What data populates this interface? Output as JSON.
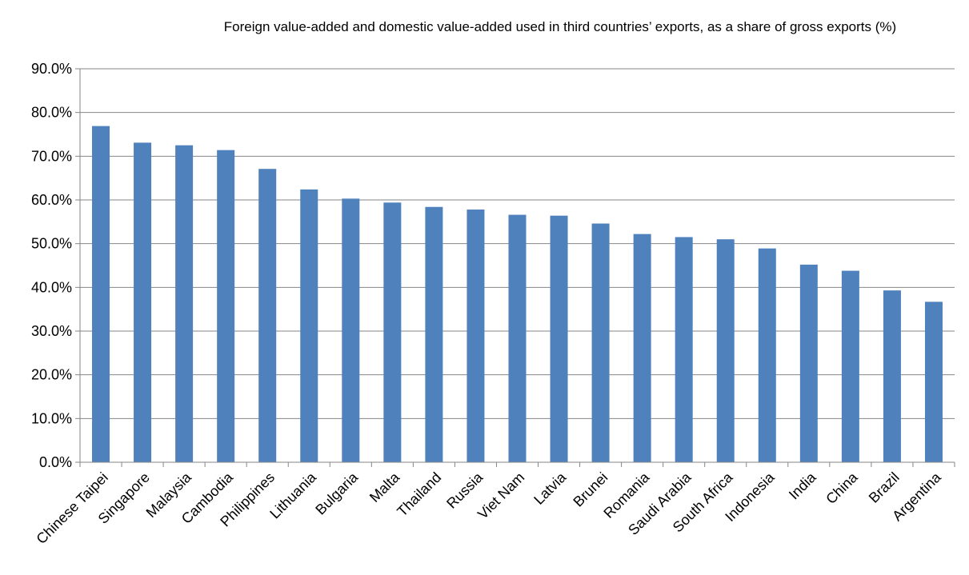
{
  "chart_data": {
    "type": "bar",
    "title": "Foreign value-added and domestic value-added used in third countries’ exports, as a share of gross exports (%)",
    "xlabel": "",
    "ylabel": "",
    "ylim": [
      0,
      90
    ],
    "yticks": [
      "0.0%",
      "10.0%",
      "20.0%",
      "30.0%",
      "40.0%",
      "50.0%",
      "60.0%",
      "70.0%",
      "80.0%",
      "90.0%"
    ],
    "grid": true,
    "legend": "none",
    "bar_color": "#4F81BD",
    "categories": [
      "Chinese Taipei",
      "Singapore",
      "Malaysia",
      "Cambodia",
      "Philippines",
      "Lithuania",
      "Bulgaria",
      "Malta",
      "Thailand",
      "Russia",
      "Viet Nam",
      "Latvia",
      "Brunei",
      "Romania",
      "Saudi Arabia",
      "South Africa",
      "Indonesia",
      "India",
      "China",
      "Brazil",
      "Argentina"
    ],
    "values": [
      76.9,
      73.1,
      72.5,
      71.4,
      67.1,
      62.4,
      60.3,
      59.4,
      58.4,
      57.8,
      56.6,
      56.4,
      54.6,
      52.2,
      51.5,
      51.0,
      48.9,
      45.2,
      43.8,
      39.3,
      36.7
    ]
  }
}
